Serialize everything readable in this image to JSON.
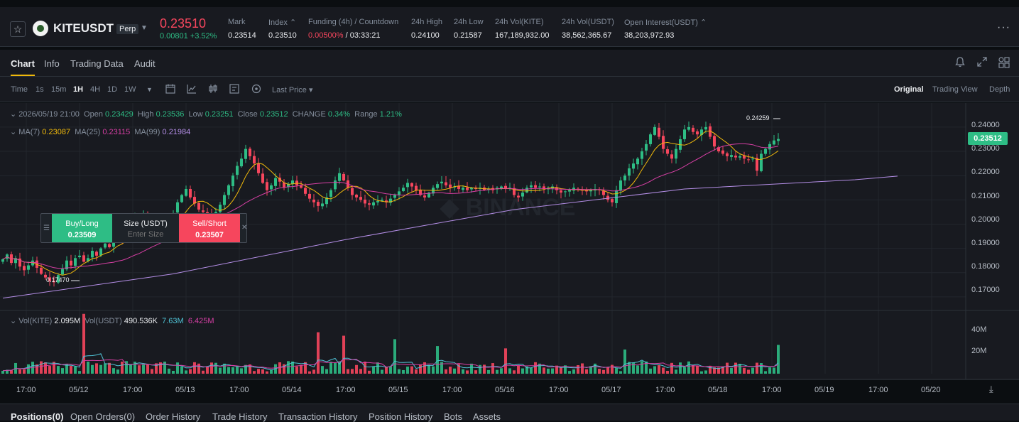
{
  "header": {
    "symbol": "KITEUSDT",
    "contract_type": "Perp",
    "last_price": "0.23510",
    "change": "0.00801 +3.52%",
    "stats": [
      {
        "label": "Mark",
        "value": "0.23514"
      },
      {
        "label": "Index ⌃",
        "value": "0.23510"
      },
      {
        "label": "Funding (4h) / Countdown",
        "value": "0.00500%",
        "value2": " / 03:33:21"
      },
      {
        "label": "24h High",
        "value": "0.24100"
      },
      {
        "label": "24h Low",
        "value": "0.21587"
      },
      {
        "label": "24h Vol(KITE)",
        "value": "167,189,932.00"
      },
      {
        "label": "24h Vol(USDT)",
        "value": "38,562,365.67"
      },
      {
        "label": "Open Interest(USDT) ⌃",
        "value": "38,203,972.93"
      }
    ],
    "more_icon": "ellipsis-icon"
  },
  "tabs": [
    "Chart",
    "Info",
    "Trading Data",
    "Audit"
  ],
  "active_tab": "Chart",
  "toolbar": {
    "intervals": [
      "Time",
      "1s",
      "15m",
      "1H",
      "4H",
      "1D",
      "1W"
    ],
    "active_interval": "1H",
    "price_type": "Last Price ▾",
    "views": [
      "Original",
      "Trading View",
      "Depth"
    ],
    "active_view": "Original"
  },
  "ohlc": {
    "timestamp": "2026/05/19 21:00",
    "open_label": "Open",
    "open": "0.23429",
    "high_label": "High",
    "high": "0.23536",
    "low_label": "Low",
    "low": "0.23251",
    "close_label": "Close",
    "close": "0.23512",
    "change_label": "CHANGE",
    "change": "0.34%",
    "range_label": "Range",
    "range": "1.21%"
  },
  "ma": {
    "ma7_label": "MA(7)",
    "ma7": "0.23087",
    "ma25_label": "MA(25)",
    "ma25": "0.23115",
    "ma99_label": "MA(99)",
    "ma99": "0.21984"
  },
  "vol": {
    "kite_label": "Vol(KITE)",
    "kite": "2.095M",
    "usdt_label": "Vol(USDT)",
    "usdt": "490.536K",
    "ma1": "7.63M",
    "ma2": "6.425M"
  },
  "price_axis": [
    "0.24000",
    "0.23000",
    "0.22000",
    "0.21000",
    "0.20000",
    "0.19000",
    "0.18000",
    "0.17000"
  ],
  "current_price_tag": "0.23512",
  "volume_axis": [
    "40M",
    "20M"
  ],
  "time_axis": [
    "17:00",
    "05/12",
    "17:00",
    "05/13",
    "17:00",
    "05/14",
    "17:00",
    "05/15",
    "17:00",
    "05/16",
    "17:00",
    "05/17",
    "17:00",
    "05/18",
    "17:00",
    "05/19",
    "17:00",
    "05/20"
  ],
  "markers": {
    "high": "0.24259",
    "low": "0.17470"
  },
  "trade_panel": {
    "buy_label": "Buy/Long",
    "buy_price": "0.23509",
    "size_label": "Size (USDT)",
    "size_placeholder": "Enter Size",
    "sell_label": "Sell/Short",
    "sell_price": "0.23507"
  },
  "bottom_tabs": [
    "Positions(0)",
    "Open Orders(0)",
    "Order History",
    "Trade History",
    "Transaction History",
    "Position History",
    "Bots",
    "Assets"
  ],
  "chart_data": {
    "type": "candlestick",
    "interval": "1H",
    "x_start": "2026/05/11 14:00",
    "close_path": [
      0.1855,
      0.1875,
      0.184,
      0.186,
      0.1825,
      0.181,
      0.183,
      0.185,
      0.182,
      0.1795,
      0.178,
      0.1765,
      0.176,
      0.179,
      0.1815,
      0.185,
      0.183,
      0.186,
      0.187,
      0.1845,
      0.186,
      0.189,
      0.187,
      0.19,
      0.192,
      0.1905,
      0.1935,
      0.1955,
      0.194,
      0.1975,
      0.2005,
      0.203,
      0.201,
      0.2045,
      0.202,
      0.1995,
      0.1975,
      0.196,
      0.1985,
      0.2015,
      0.2045,
      0.209,
      0.212,
      0.2145,
      0.211,
      0.2085,
      0.206,
      0.205,
      0.204,
      0.203,
      0.205,
      0.208,
      0.212,
      0.216,
      0.22,
      0.224,
      0.227,
      0.231,
      0.228,
      0.225,
      0.221,
      0.217,
      0.214,
      0.216,
      0.219,
      0.2175,
      0.215,
      0.2165,
      0.218,
      0.216,
      0.215,
      0.2125,
      0.2105,
      0.209,
      0.2075,
      0.2085,
      0.211,
      0.214,
      0.218,
      0.221,
      0.218,
      0.215,
      0.212,
      0.211,
      0.21,
      0.2085,
      0.208,
      0.209,
      0.2095,
      0.21,
      0.209,
      0.2105,
      0.212,
      0.2135,
      0.215,
      0.217,
      0.2155,
      0.214,
      0.212,
      0.211,
      0.213,
      0.215,
      0.2165,
      0.2175,
      0.216,
      0.215,
      0.2155,
      0.2145,
      0.215,
      0.214,
      0.215,
      0.2145,
      0.215,
      0.214,
      0.2145,
      0.214,
      0.215,
      0.2155,
      0.2145,
      0.215,
      0.212,
      0.211,
      0.213,
      0.215,
      0.216,
      0.215,
      0.2155,
      0.2145,
      0.215,
      0.2155,
      0.214,
      0.213,
      0.2135,
      0.214,
      0.215,
      0.2145,
      0.214,
      0.2135,
      0.214,
      0.2145,
      0.214,
      0.212,
      0.21,
      0.209,
      0.214,
      0.218,
      0.22,
      0.223,
      0.225,
      0.227,
      0.23,
      0.233,
      0.237,
      0.24,
      0.236,
      0.231,
      0.229,
      0.227,
      0.231,
      0.235,
      0.239,
      0.24,
      0.238,
      0.237,
      0.239,
      0.24,
      0.236,
      0.232,
      0.23,
      0.229,
      0.228,
      0.2285,
      0.2275,
      0.228,
      0.227,
      0.2265,
      0.227,
      0.222,
      0.229,
      0.231,
      0.233,
      0.2345,
      0.2351
    ],
    "ylim": [
      0.165,
      0.247
    ],
    "ma_series": [
      "MA(7)",
      "MA(25)",
      "MA(99)"
    ],
    "ma_colors": {
      "MA(7)": "#f0b90b",
      "MA(25)": "#d63fa4",
      "MA(99)": "#b48ee6"
    },
    "ma99_points": [
      [
        0,
        0.1695
      ],
      [
        40,
        0.1795
      ],
      [
        80,
        0.1935
      ],
      [
        120,
        0.206
      ],
      [
        160,
        0.2145
      ],
      [
        200,
        0.2183
      ],
      [
        210,
        0.2198
      ]
    ],
    "volume_ylim_M": [
      0,
      50
    ],
    "volume_ticks_M": [
      20,
      40
    ],
    "volume_spikes": [
      {
        "index": 19,
        "value_M": 52
      },
      {
        "index": 74,
        "value_M": 36
      },
      {
        "index": 80,
        "value_M": 33
      },
      {
        "index": 92,
        "value_M": 30
      },
      {
        "index": 102,
        "value_M": 24
      },
      {
        "index": 118,
        "value_M": 22
      },
      {
        "index": 146,
        "value_M": 21
      },
      {
        "index": 182,
        "value_M": 25
      },
      {
        "index": 186,
        "value_M": 19
      }
    ],
    "up_color": "#2ebd85",
    "down_color": "#f6465d",
    "grid": true
  }
}
